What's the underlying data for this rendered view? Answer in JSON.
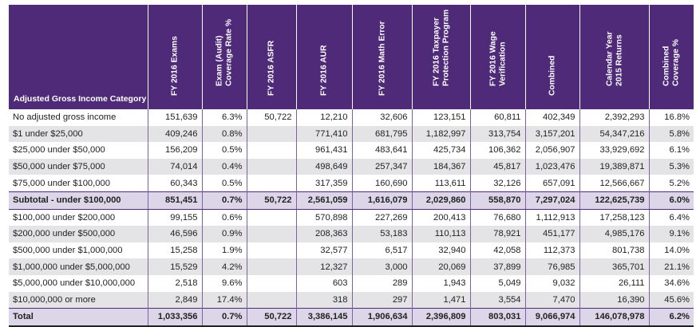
{
  "colors": {
    "header_bg": "#4e2a78",
    "alt_row": "#e4e4e6",
    "summary_row": "#ddd5e8"
  },
  "headers": [
    "Adjusted Gross Income Category",
    "FY 2016 Exams",
    "Exam (Audit)\nCoverage Rate %",
    "FY 2016 ASFR",
    "FY 2016 AUR",
    "FY 2016 Math Error",
    "FY 2016 Taxpayer\nProtection Program",
    "FY 2016 Wage\nVerification",
    "Combined",
    "Calendar Year\n2015 Returns",
    "Combined\nCoverage %"
  ],
  "rows": [
    {
      "type": "normal",
      "cells": [
        "No adjusted gross income",
        "151,639",
        "6.3%",
        "50,722",
        "12,210",
        "32,606",
        "123,151",
        "60,811",
        "402,349",
        "2,392,293",
        "16.8%"
      ]
    },
    {
      "type": "alt",
      "cells": [
        "$1 under $25,000",
        "409,246",
        "0.8%",
        "",
        "771,410",
        "681,795",
        "1,182,997",
        "313,754",
        "3,157,201",
        "54,347,216",
        "5.8%"
      ]
    },
    {
      "type": "normal",
      "cells": [
        "$25,000 under $50,000",
        "156,209",
        "0.5%",
        "",
        "961,431",
        "483,641",
        "425,734",
        "106,362",
        "2,056,907",
        "33,929,692",
        "6.1%"
      ]
    },
    {
      "type": "alt",
      "cells": [
        "$50,000 under $75,000",
        "74,014",
        "0.4%",
        "",
        "498,649",
        "257,347",
        "184,367",
        "45,817",
        "1,023,476",
        "19,389,871",
        "5.3%"
      ]
    },
    {
      "type": "normal",
      "cells": [
        "$75,000 under $100,000",
        "60,343",
        "0.5%",
        "",
        "317,359",
        "160,690",
        "113,611",
        "32,126",
        "657,091",
        "12,566,667",
        "5.2%"
      ]
    },
    {
      "type": "sub",
      "cells": [
        "Subtotal - under $100,000",
        "851,451",
        "0.7%",
        "50,722",
        "2,561,059",
        "1,616,079",
        "2,029,860",
        "558,870",
        "7,297,024",
        "122,625,739",
        "6.0%"
      ]
    },
    {
      "type": "normal",
      "cells": [
        "$100,000 under $200,000",
        "99,155",
        "0.6%",
        "",
        "570,898",
        "227,269",
        "200,413",
        "76,680",
        "1,112,913",
        "17,258,123",
        "6.4%"
      ]
    },
    {
      "type": "alt",
      "cells": [
        "$200,000 under $500,000",
        "46,596",
        "0.9%",
        "",
        "208,363",
        "53,183",
        "110,113",
        "78,921",
        "451,177",
        "4,985,176",
        "9.1%"
      ]
    },
    {
      "type": "normal",
      "cells": [
        "$500,000 under $1,000,000",
        "15,258",
        "1.9%",
        "",
        "32,577",
        "6,517",
        "32,940",
        "42,058",
        "112,373",
        "801,738",
        "14.0%"
      ]
    },
    {
      "type": "alt",
      "cells": [
        "$1,000,000 under $5,000,000",
        "15,529",
        "4.2%",
        "",
        "12,327",
        "3,000",
        "20,069",
        "37,899",
        "76,985",
        "365,701",
        "21.1%"
      ]
    },
    {
      "type": "normal",
      "cells": [
        "$5,000,000 under $10,000,000",
        "2,518",
        "9.6%",
        "",
        "603",
        "289",
        "1,943",
        "5,049",
        "9,032",
        "26,111",
        "34.6%"
      ]
    },
    {
      "type": "alt",
      "cells": [
        "$10,000,000 or more",
        "2,849",
        "17.4%",
        "",
        "318",
        "297",
        "1,471",
        "3,554",
        "7,470",
        "16,390",
        "45.6%"
      ]
    },
    {
      "type": "tot",
      "cells": [
        "Total",
        "1,033,356",
        "0.7%",
        "50,722",
        "3,386,145",
        "1,906,634",
        "2,396,809",
        "803,031",
        "9,066,974",
        "146,078,978",
        "6.2%"
      ]
    }
  ]
}
